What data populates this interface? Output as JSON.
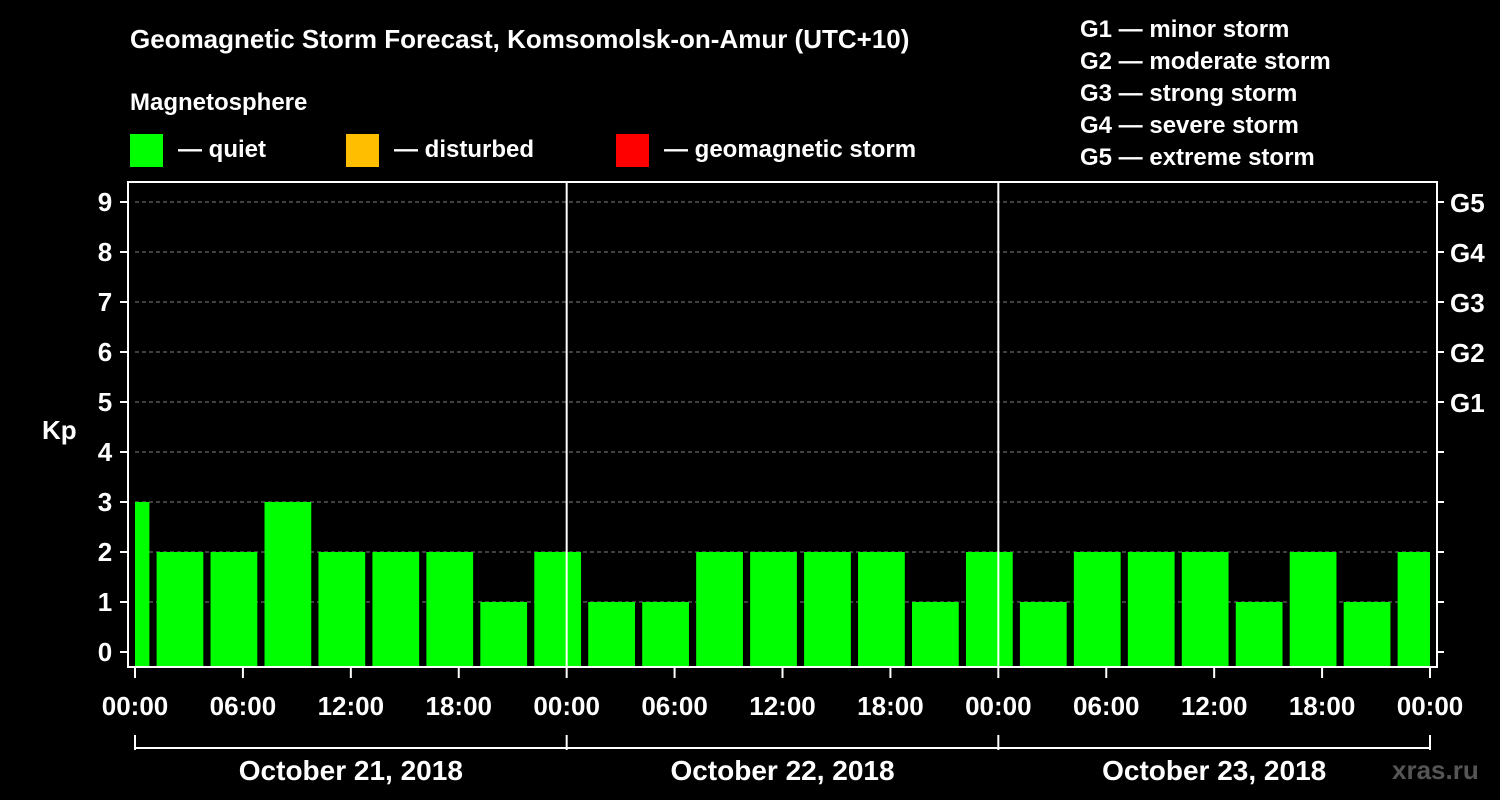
{
  "chart_data": {
    "type": "bar",
    "title": "Geomagnetic Storm Forecast, Komsomolsk-on-Amur (UTC+10)",
    "ylabel": "Kp",
    "ylim": [
      0,
      9
    ],
    "y_ticks": [
      "0",
      "1",
      "2",
      "3",
      "4",
      "5",
      "6",
      "7",
      "8",
      "9"
    ],
    "right_axis_labels": [
      {
        "kp": 5,
        "label": "G1"
      },
      {
        "kp": 6,
        "label": "G2"
      },
      {
        "kp": 7,
        "label": "G3"
      },
      {
        "kp": 8,
        "label": "G4"
      },
      {
        "kp": 9,
        "label": "G5"
      }
    ],
    "x_ticks": [
      "00:00",
      "06:00",
      "12:00",
      "18:00",
      "00:00",
      "06:00",
      "12:00",
      "18:00",
      "00:00",
      "06:00",
      "12:00",
      "18:00",
      "00:00"
    ],
    "x_range_hours": [
      0,
      72
    ],
    "bars": [
      {
        "start_hour": 0,
        "end_hour": 0.8,
        "kp": 3
      },
      {
        "start_hour": 1.2,
        "end_hour": 3.8,
        "kp": 2
      },
      {
        "start_hour": 4.2,
        "end_hour": 6.8,
        "kp": 2
      },
      {
        "start_hour": 7.2,
        "end_hour": 9.8,
        "kp": 3
      },
      {
        "start_hour": 10.2,
        "end_hour": 12.8,
        "kp": 2
      },
      {
        "start_hour": 13.2,
        "end_hour": 15.8,
        "kp": 2
      },
      {
        "start_hour": 16.2,
        "end_hour": 18.8,
        "kp": 2
      },
      {
        "start_hour": 19.2,
        "end_hour": 21.8,
        "kp": 1
      },
      {
        "start_hour": 22.2,
        "end_hour": 24.8,
        "kp": 2
      },
      {
        "start_hour": 25.2,
        "end_hour": 27.8,
        "kp": 1
      },
      {
        "start_hour": 28.2,
        "end_hour": 30.8,
        "kp": 1
      },
      {
        "start_hour": 31.2,
        "end_hour": 33.8,
        "kp": 2
      },
      {
        "start_hour": 34.2,
        "end_hour": 36.8,
        "kp": 2
      },
      {
        "start_hour": 37.2,
        "end_hour": 39.8,
        "kp": 2
      },
      {
        "start_hour": 40.2,
        "end_hour": 42.8,
        "kp": 2
      },
      {
        "start_hour": 43.2,
        "end_hour": 45.8,
        "kp": 1
      },
      {
        "start_hour": 46.2,
        "end_hour": 48.8,
        "kp": 2
      },
      {
        "start_hour": 49.2,
        "end_hour": 51.8,
        "kp": 1
      },
      {
        "start_hour": 52.2,
        "end_hour": 54.8,
        "kp": 2
      },
      {
        "start_hour": 55.2,
        "end_hour": 57.8,
        "kp": 2
      },
      {
        "start_hour": 58.2,
        "end_hour": 60.8,
        "kp": 2
      },
      {
        "start_hour": 61.2,
        "end_hour": 63.8,
        "kp": 1
      },
      {
        "start_hour": 64.2,
        "end_hour": 66.8,
        "kp": 2
      },
      {
        "start_hour": 67.2,
        "end_hour": 69.8,
        "kp": 1
      },
      {
        "start_hour": 70.2,
        "end_hour": 72,
        "kp": 2
      }
    ],
    "days": [
      "October 21, 2018",
      "October 22, 2018",
      "October 23, 2018"
    ],
    "grid": true
  },
  "legend": {
    "heading": "Magnetosphere",
    "items": [
      {
        "label": "— quiet",
        "color": "#00ff00"
      },
      {
        "label": "— disturbed",
        "color": "#ffbf00"
      },
      {
        "label": "— geomagnetic storm",
        "color": "#ff0000"
      }
    ]
  },
  "storm_scale": [
    "G1 — minor storm",
    "G2 — moderate storm",
    "G3 — strong storm",
    "G4 — severe storm",
    "G5 — extreme storm"
  ],
  "colors": {
    "background": "#000000",
    "foreground": "#ffffff",
    "quiet": "#00ff00",
    "grid": "#808080"
  },
  "watermark": "xras.ru"
}
